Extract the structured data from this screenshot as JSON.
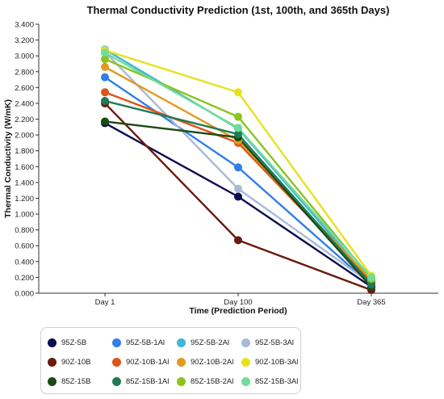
{
  "chart_data": {
    "type": "line",
    "title": "Thermal Conductivity Prediction (1st, 100th, and 365th Days)",
    "xlabel": "Time (Prediction Period)",
    "ylabel": "Thermal Conductivity (W/mK)",
    "categories": [
      "Day 1",
      "Day 100",
      "Day 365"
    ],
    "ylim": [
      0,
      3.4
    ],
    "yticks": [
      "0.000",
      "0.200",
      "0.400",
      "0.600",
      "0.800",
      "1.000",
      "1.200",
      "1.400",
      "1.600",
      "1.800",
      "2.000",
      "2.200",
      "2.400",
      "2.600",
      "2.800",
      "3.000",
      "3.200",
      "3.400"
    ],
    "grid": false,
    "legend_position": "bottom-left",
    "series": [
      {
        "name": "95Z-5B",
        "color": "#0d0d4f",
        "values": [
          2.15,
          1.22,
          0.08
        ]
      },
      {
        "name": "95Z-5B-1Al",
        "color": "#2f7fe8",
        "values": [
          2.73,
          1.59,
          0.1
        ]
      },
      {
        "name": "95Z-5B-2Al",
        "color": "#3fb7d6",
        "values": [
          3.08,
          2.08,
          0.15
        ]
      },
      {
        "name": "95Z-5B-3Al",
        "color": "#a9b9d6",
        "values": [
          3.05,
          1.32,
          0.12
        ]
      },
      {
        "name": "90Z-10B",
        "color": "#6b1a0e",
        "values": [
          2.4,
          0.67,
          0.04
        ]
      },
      {
        "name": "90Z-10B-1Al",
        "color": "#dd5416",
        "values": [
          2.54,
          1.9,
          0.14
        ]
      },
      {
        "name": "90Z-10B-2Al",
        "color": "#e09a20",
        "values": [
          2.86,
          1.93,
          0.17
        ]
      },
      {
        "name": "90Z-10B-3Al",
        "color": "#e6e21e",
        "values": [
          3.07,
          2.54,
          0.22
        ]
      },
      {
        "name": "85Z-15B",
        "color": "#1a4a12",
        "values": [
          2.17,
          1.97,
          0.08
        ]
      },
      {
        "name": "85Z-15B-1Al",
        "color": "#1f7a55",
        "values": [
          2.43,
          2.01,
          0.11
        ]
      },
      {
        "name": "85Z-15B-2Al",
        "color": "#8ac41c",
        "values": [
          2.96,
          2.23,
          0.18
        ]
      },
      {
        "name": "85Z-15B-3Al",
        "color": "#6fdc98",
        "values": [
          3.04,
          2.09,
          0.2
        ]
      }
    ]
  }
}
